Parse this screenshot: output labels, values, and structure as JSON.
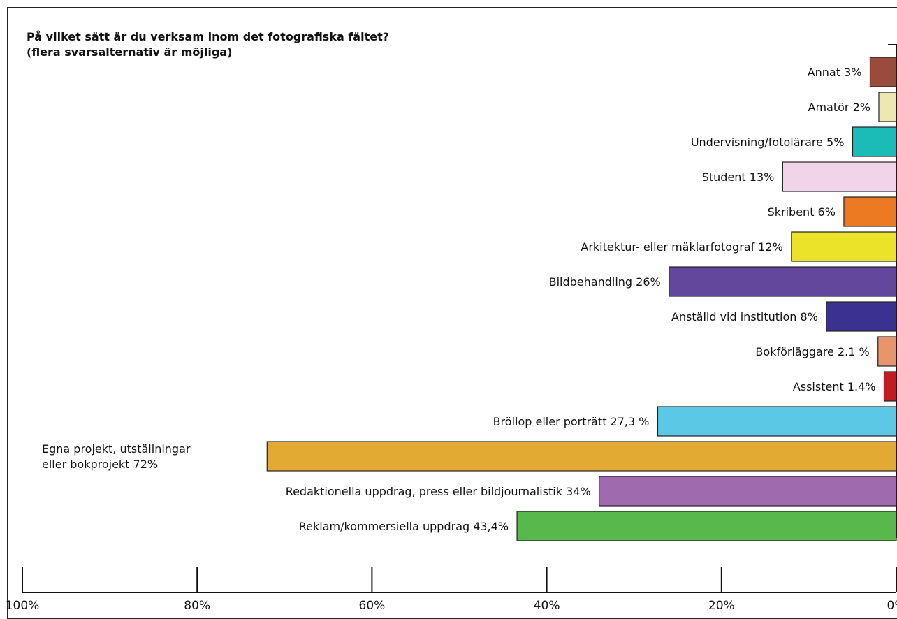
{
  "chart_data": {
    "type": "bar",
    "orientation": "horizontal",
    "title": "På vilket sätt är du verksam inom det fotografiska fältet?",
    "subtitle": "(flera svarsalternativ är möjliga)",
    "xlim": [
      0,
      100
    ],
    "x_direction": "reversed",
    "ticks": [
      {
        "value": 100,
        "label": "100%"
      },
      {
        "value": 80,
        "label": "80%"
      },
      {
        "value": 60,
        "label": "60%"
      },
      {
        "value": 40,
        "label": "40%"
      },
      {
        "value": 20,
        "label": "20%"
      },
      {
        "value": 0,
        "label": "0%"
      }
    ],
    "bars": [
      {
        "label": [
          "Annat 3%"
        ],
        "value": 3,
        "color": "#9a4b3c"
      },
      {
        "label": [
          "Amatör 2%"
        ],
        "value": 2,
        "color": "#ede8b0"
      },
      {
        "label": [
          "Undervisning/fotolärare 5%"
        ],
        "value": 5,
        "color": "#1bbcb8"
      },
      {
        "label": [
          "Student 13%"
        ],
        "value": 13,
        "color": "#f2d4e8"
      },
      {
        "label": [
          "Skribent 6%"
        ],
        "value": 6,
        "color": "#ec7a22"
      },
      {
        "label": [
          "Arkitektur- eller mäklarfotograf 12%"
        ],
        "value": 12,
        "color": "#ebe32a"
      },
      {
        "label": [
          "Bildbehandling 26%"
        ],
        "value": 26,
        "color": "#63479c"
      },
      {
        "label": [
          "Anställd vid institution 8%"
        ],
        "value": 8,
        "color": "#3b3191"
      },
      {
        "label": [
          "Bokförläggare 2.1 %"
        ],
        "value": 2.1,
        "color": "#e8956e"
      },
      {
        "label": [
          "Assistent 1.4%"
        ],
        "value": 1.4,
        "color": "#c01c22"
      },
      {
        "label": [
          "Bröllop eller porträtt 27,3 %"
        ],
        "value": 27.3,
        "color": "#5bc8e6"
      },
      {
        "label": [
          "Egna projekt, utställningar",
          "eller bokprojekt 72%"
        ],
        "value": 72,
        "color": "#e3aa33"
      },
      {
        "label": [
          "Redaktionella uppdrag, press eller bildjournalistik 34%"
        ],
        "value": 34,
        "color": "#a06bae"
      },
      {
        "label": [
          "Reklam/kommersiella uppdrag 43,4%"
        ],
        "value": 43.4,
        "color": "#58b84b"
      }
    ]
  }
}
